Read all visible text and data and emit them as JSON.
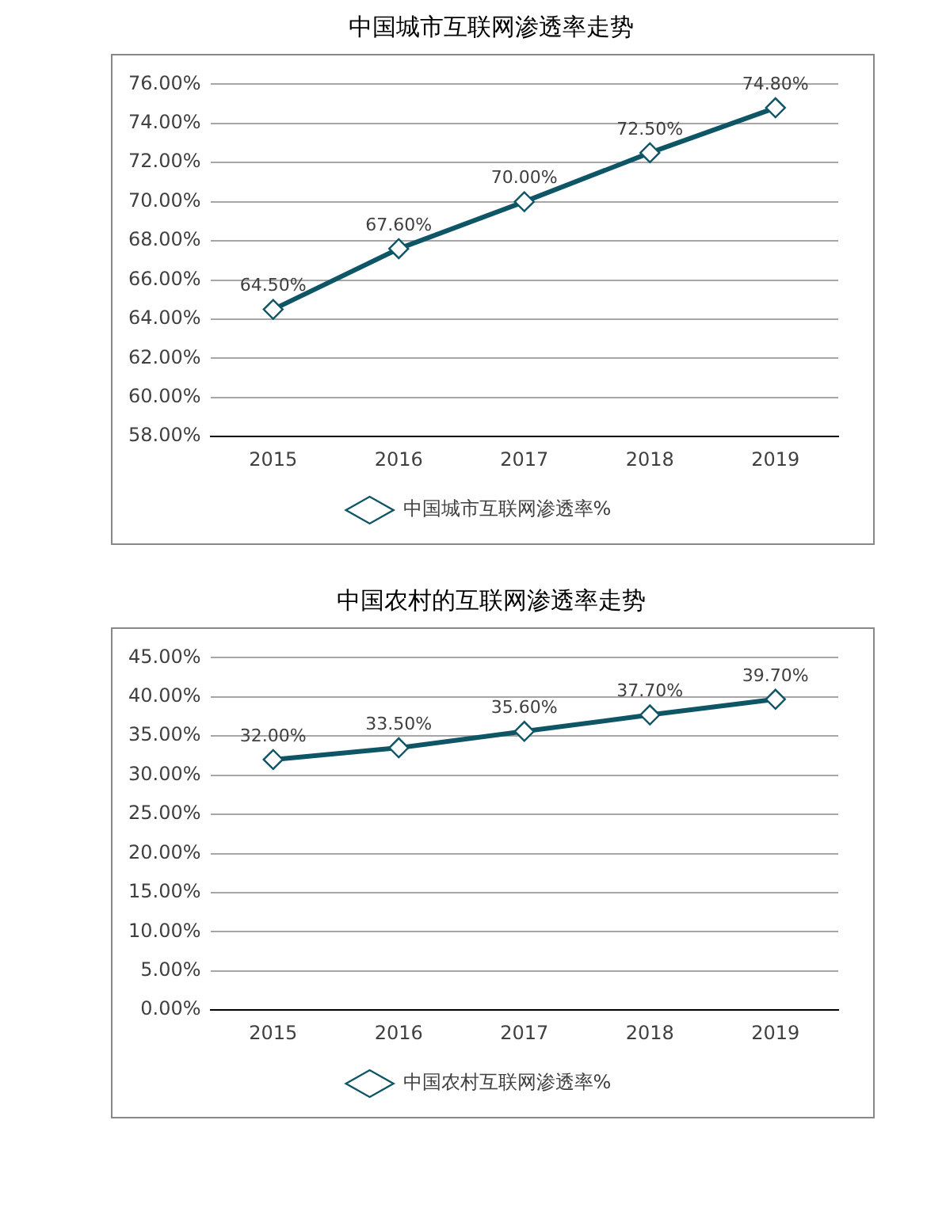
{
  "chart_data": [
    {
      "type": "line",
      "title": "中国城市互联网渗透率走势",
      "categories": [
        "2015",
        "2016",
        "2017",
        "2018",
        "2019"
      ],
      "series": [
        {
          "name": "中国城市互联网渗透率%",
          "color": "#0e5566",
          "values": [
            64.5,
            67.6,
            70.0,
            72.5,
            74.8
          ],
          "value_labels": [
            "64.50%",
            "67.60%",
            "70.00%",
            "72.50%",
            "74.80%"
          ]
        }
      ],
      "ylim": [
        58,
        76
      ],
      "yticks": [
        {
          "value": 58,
          "label": "58.00%"
        },
        {
          "value": 60,
          "label": "60.00%"
        },
        {
          "value": 62,
          "label": "62.00%"
        },
        {
          "value": 64,
          "label": "64.00%"
        },
        {
          "value": 66,
          "label": "66.00%"
        },
        {
          "value": 68,
          "label": "68.00%"
        },
        {
          "value": 70,
          "label": "70.00%"
        },
        {
          "value": 72,
          "label": "72.00%"
        },
        {
          "value": 74,
          "label": "74.00%"
        },
        {
          "value": 76,
          "label": "76.00%"
        }
      ],
      "grid": "y",
      "legend": "bottom",
      "marker": "diamond",
      "line_style": "solid"
    },
    {
      "type": "line",
      "title": "中国农村的互联网渗透率走势",
      "categories": [
        "2015",
        "2016",
        "2017",
        "2018",
        "2019"
      ],
      "series": [
        {
          "name": "中国农村互联网渗透率%",
          "color": "#0e5566",
          "values": [
            32.0,
            33.5,
            35.6,
            37.7,
            39.7
          ],
          "value_labels": [
            "32.00%",
            "33.50%",
            "35.60%",
            "37.70%",
            "39.70%"
          ]
        }
      ],
      "ylim": [
        0,
        45
      ],
      "yticks": [
        {
          "value": 0,
          "label": "0.00%"
        },
        {
          "value": 5,
          "label": "5.00%"
        },
        {
          "value": 10,
          "label": "10.00%"
        },
        {
          "value": 15,
          "label": "15.00%"
        },
        {
          "value": 20,
          "label": "20.00%"
        },
        {
          "value": 25,
          "label": "25.00%"
        },
        {
          "value": 30,
          "label": "30.00%"
        },
        {
          "value": 35,
          "label": "35.00%"
        },
        {
          "value": 40,
          "label": "40.00%"
        },
        {
          "value": 45,
          "label": "45.00%"
        }
      ],
      "grid": "y",
      "legend": "bottom",
      "marker": "diamond",
      "line_style": "solid"
    }
  ]
}
